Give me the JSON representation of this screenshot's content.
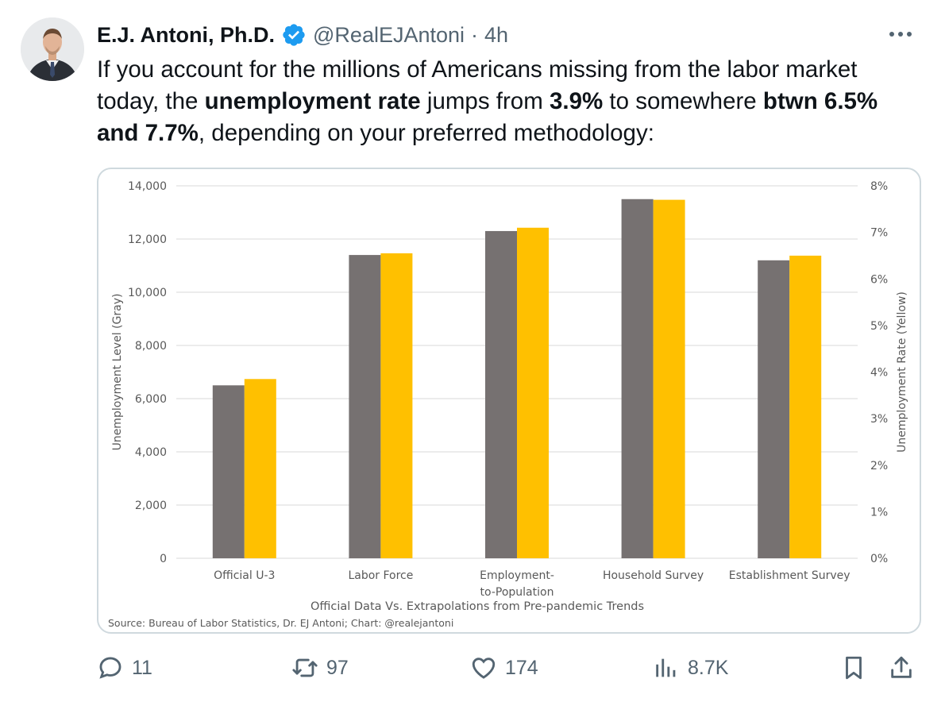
{
  "author": {
    "name": "E.J. Antoni, Ph.D.",
    "handle": "@RealEJAntoni",
    "separator": "·",
    "time": "4h"
  },
  "tweet": {
    "p1": "If you account for the millions of Americans missing from the labor market today, the ",
    "b1": "unemployment rate",
    "p2": " jumps from ",
    "b2": "3.9%",
    "p3": " to somewhere ",
    "b3": "btwn 6.5% and 7.7%",
    "p4": ", depending on your preferred methodology:"
  },
  "chart_data": {
    "type": "bar",
    "categories": [
      "Official U-3",
      "Labor Force",
      "Employment-to-Population",
      "Household Survey",
      "Establishment Survey"
    ],
    "category_lines": [
      [
        "Official U-3"
      ],
      [
        "Labor Force"
      ],
      [
        "Employment-",
        "to-Population"
      ],
      [
        "Household Survey"
      ],
      [
        "Establishment Survey"
      ]
    ],
    "series": [
      {
        "name": "Unemployment Level (Gray)",
        "axis": "left",
        "color": "#767171",
        "values": [
          6500,
          11400,
          12300,
          13500,
          11200
        ]
      },
      {
        "name": "Unemployment Rate (Yellow)",
        "axis": "right",
        "color": "#FFC000",
        "values": [
          3.85,
          6.55,
          7.1,
          7.7,
          6.5
        ]
      }
    ],
    "ylabel": "Unemployment Level (Gray)",
    "y2label": "Unemployment Rate (Yellow)",
    "xlabel": "Official Data Vs. Extrapolations from Pre-pandemic Trends",
    "source": "Source: Bureau of Labor Statistics, Dr. EJ Antoni; Chart: @realejantoni",
    "ylim": [
      0,
      14000
    ],
    "y2lim": [
      0,
      8
    ],
    "yticks": [
      "0",
      "2,000",
      "4,000",
      "6,000",
      "8,000",
      "10,000",
      "12,000",
      "14,000"
    ],
    "y2ticks": [
      "0%",
      "1%",
      "2%",
      "3%",
      "4%",
      "5%",
      "6%",
      "7%",
      "8%"
    ],
    "grid": true
  },
  "actions": {
    "replies": "11",
    "reposts": "97",
    "likes": "174",
    "views": "8.7K"
  }
}
